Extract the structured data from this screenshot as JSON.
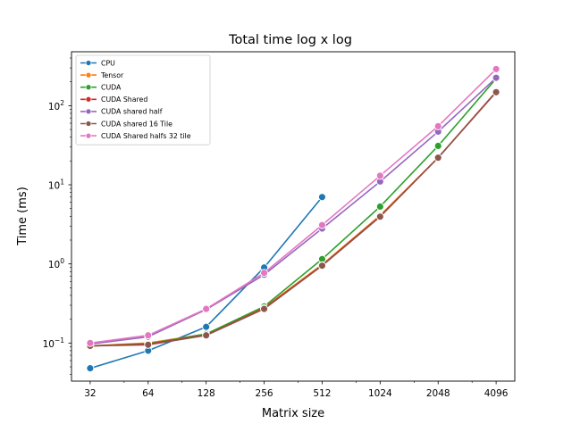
{
  "chart_data": {
    "type": "line",
    "title": "Total time log x log",
    "xlabel": "Matrix size",
    "ylabel": "Time (ms)",
    "x_scale": "log2",
    "y_scale": "log10",
    "x": [
      32,
      64,
      128,
      256,
      512,
      1024,
      2048,
      4096
    ],
    "x_tick_labels": [
      "32",
      "64",
      "128",
      "256",
      "512",
      "1024",
      "2048",
      "4096"
    ],
    "xlim": [
      25.6,
      5120
    ],
    "ylim": [
      0.033,
      480
    ],
    "y_ticks": [
      {
        "value": 0.1,
        "base": "10",
        "exp": "−1"
      },
      {
        "value": 1,
        "base": "10",
        "exp": "0"
      },
      {
        "value": 10,
        "base": "10",
        "exp": "1"
      },
      {
        "value": 100,
        "base": "10",
        "exp": "2"
      }
    ],
    "legend_position": "upper-left",
    "series": [
      {
        "name": "CPU",
        "color": "#1f77b4",
        "values": [
          0.048,
          0.08,
          0.16,
          0.9,
          7.0,
          null,
          null,
          null
        ]
      },
      {
        "name": "Tensor",
        "color": "#ff7f0e",
        "values": [
          0.092,
          0.1,
          0.13,
          0.28,
          0.98,
          4.1,
          22,
          150
        ]
      },
      {
        "name": "CUDA",
        "color": "#2ca02c",
        "values": [
          0.092,
          0.098,
          0.13,
          0.29,
          1.15,
          5.3,
          31,
          220
        ]
      },
      {
        "name": "CUDA Shared",
        "color": "#d62728",
        "values": [
          0.092,
          0.097,
          0.126,
          0.275,
          0.96,
          4.0,
          22,
          150
        ]
      },
      {
        "name": "CUDA shared half",
        "color": "#9467bd",
        "values": [
          0.097,
          0.12,
          0.265,
          0.73,
          2.8,
          11,
          47,
          225
        ]
      },
      {
        "name": "CUDA shared 16 Tile",
        "color": "#8c564b",
        "values": [
          0.092,
          0.095,
          0.125,
          0.27,
          0.95,
          3.95,
          22,
          148
        ]
      },
      {
        "name": "CUDA Shared halfs 32 tile",
        "color": "#e377c2",
        "values": [
          0.1,
          0.125,
          0.27,
          0.77,
          3.1,
          13,
          55,
          290
        ]
      }
    ]
  }
}
